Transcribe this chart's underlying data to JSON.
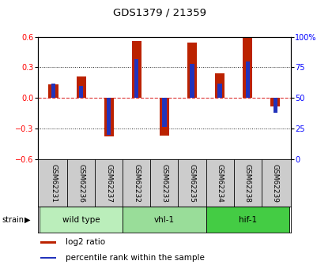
{
  "title": "GDS1379 / 21359",
  "samples": [
    "GSM62231",
    "GSM62236",
    "GSM62237",
    "GSM62232",
    "GSM62233",
    "GSM62235",
    "GSM62234",
    "GSM62238",
    "GSM62239"
  ],
  "log2_ratio": [
    0.13,
    0.21,
    -0.38,
    0.56,
    -0.37,
    0.54,
    0.24,
    0.6,
    -0.08
  ],
  "percentile_rank": [
    62,
    60,
    20,
    82,
    26,
    78,
    62,
    80,
    38
  ],
  "groups": [
    {
      "label": "wild type",
      "indices": [
        0,
        1,
        2
      ],
      "color": "#bbeebb"
    },
    {
      "label": "vhl-1",
      "indices": [
        3,
        4,
        5
      ],
      "color": "#99dd99"
    },
    {
      "label": "hif-1",
      "indices": [
        6,
        7,
        8
      ],
      "color": "#44cc44"
    }
  ],
  "ylim": [
    -0.6,
    0.6
  ],
  "yticks_left": [
    -0.6,
    -0.3,
    0.0,
    0.3,
    0.6
  ],
  "yticks_right_labels": [
    "0",
    "25",
    "50",
    "75",
    "100%"
  ],
  "bar_color": "#bb2200",
  "pct_color": "#2233bb",
  "zero_line_color": "#dd3333",
  "grid_color": "#222222",
  "bg_color": "#ffffff",
  "sample_box_color": "#cccccc",
  "bar_width": 0.35,
  "pct_bar_width": 0.15
}
